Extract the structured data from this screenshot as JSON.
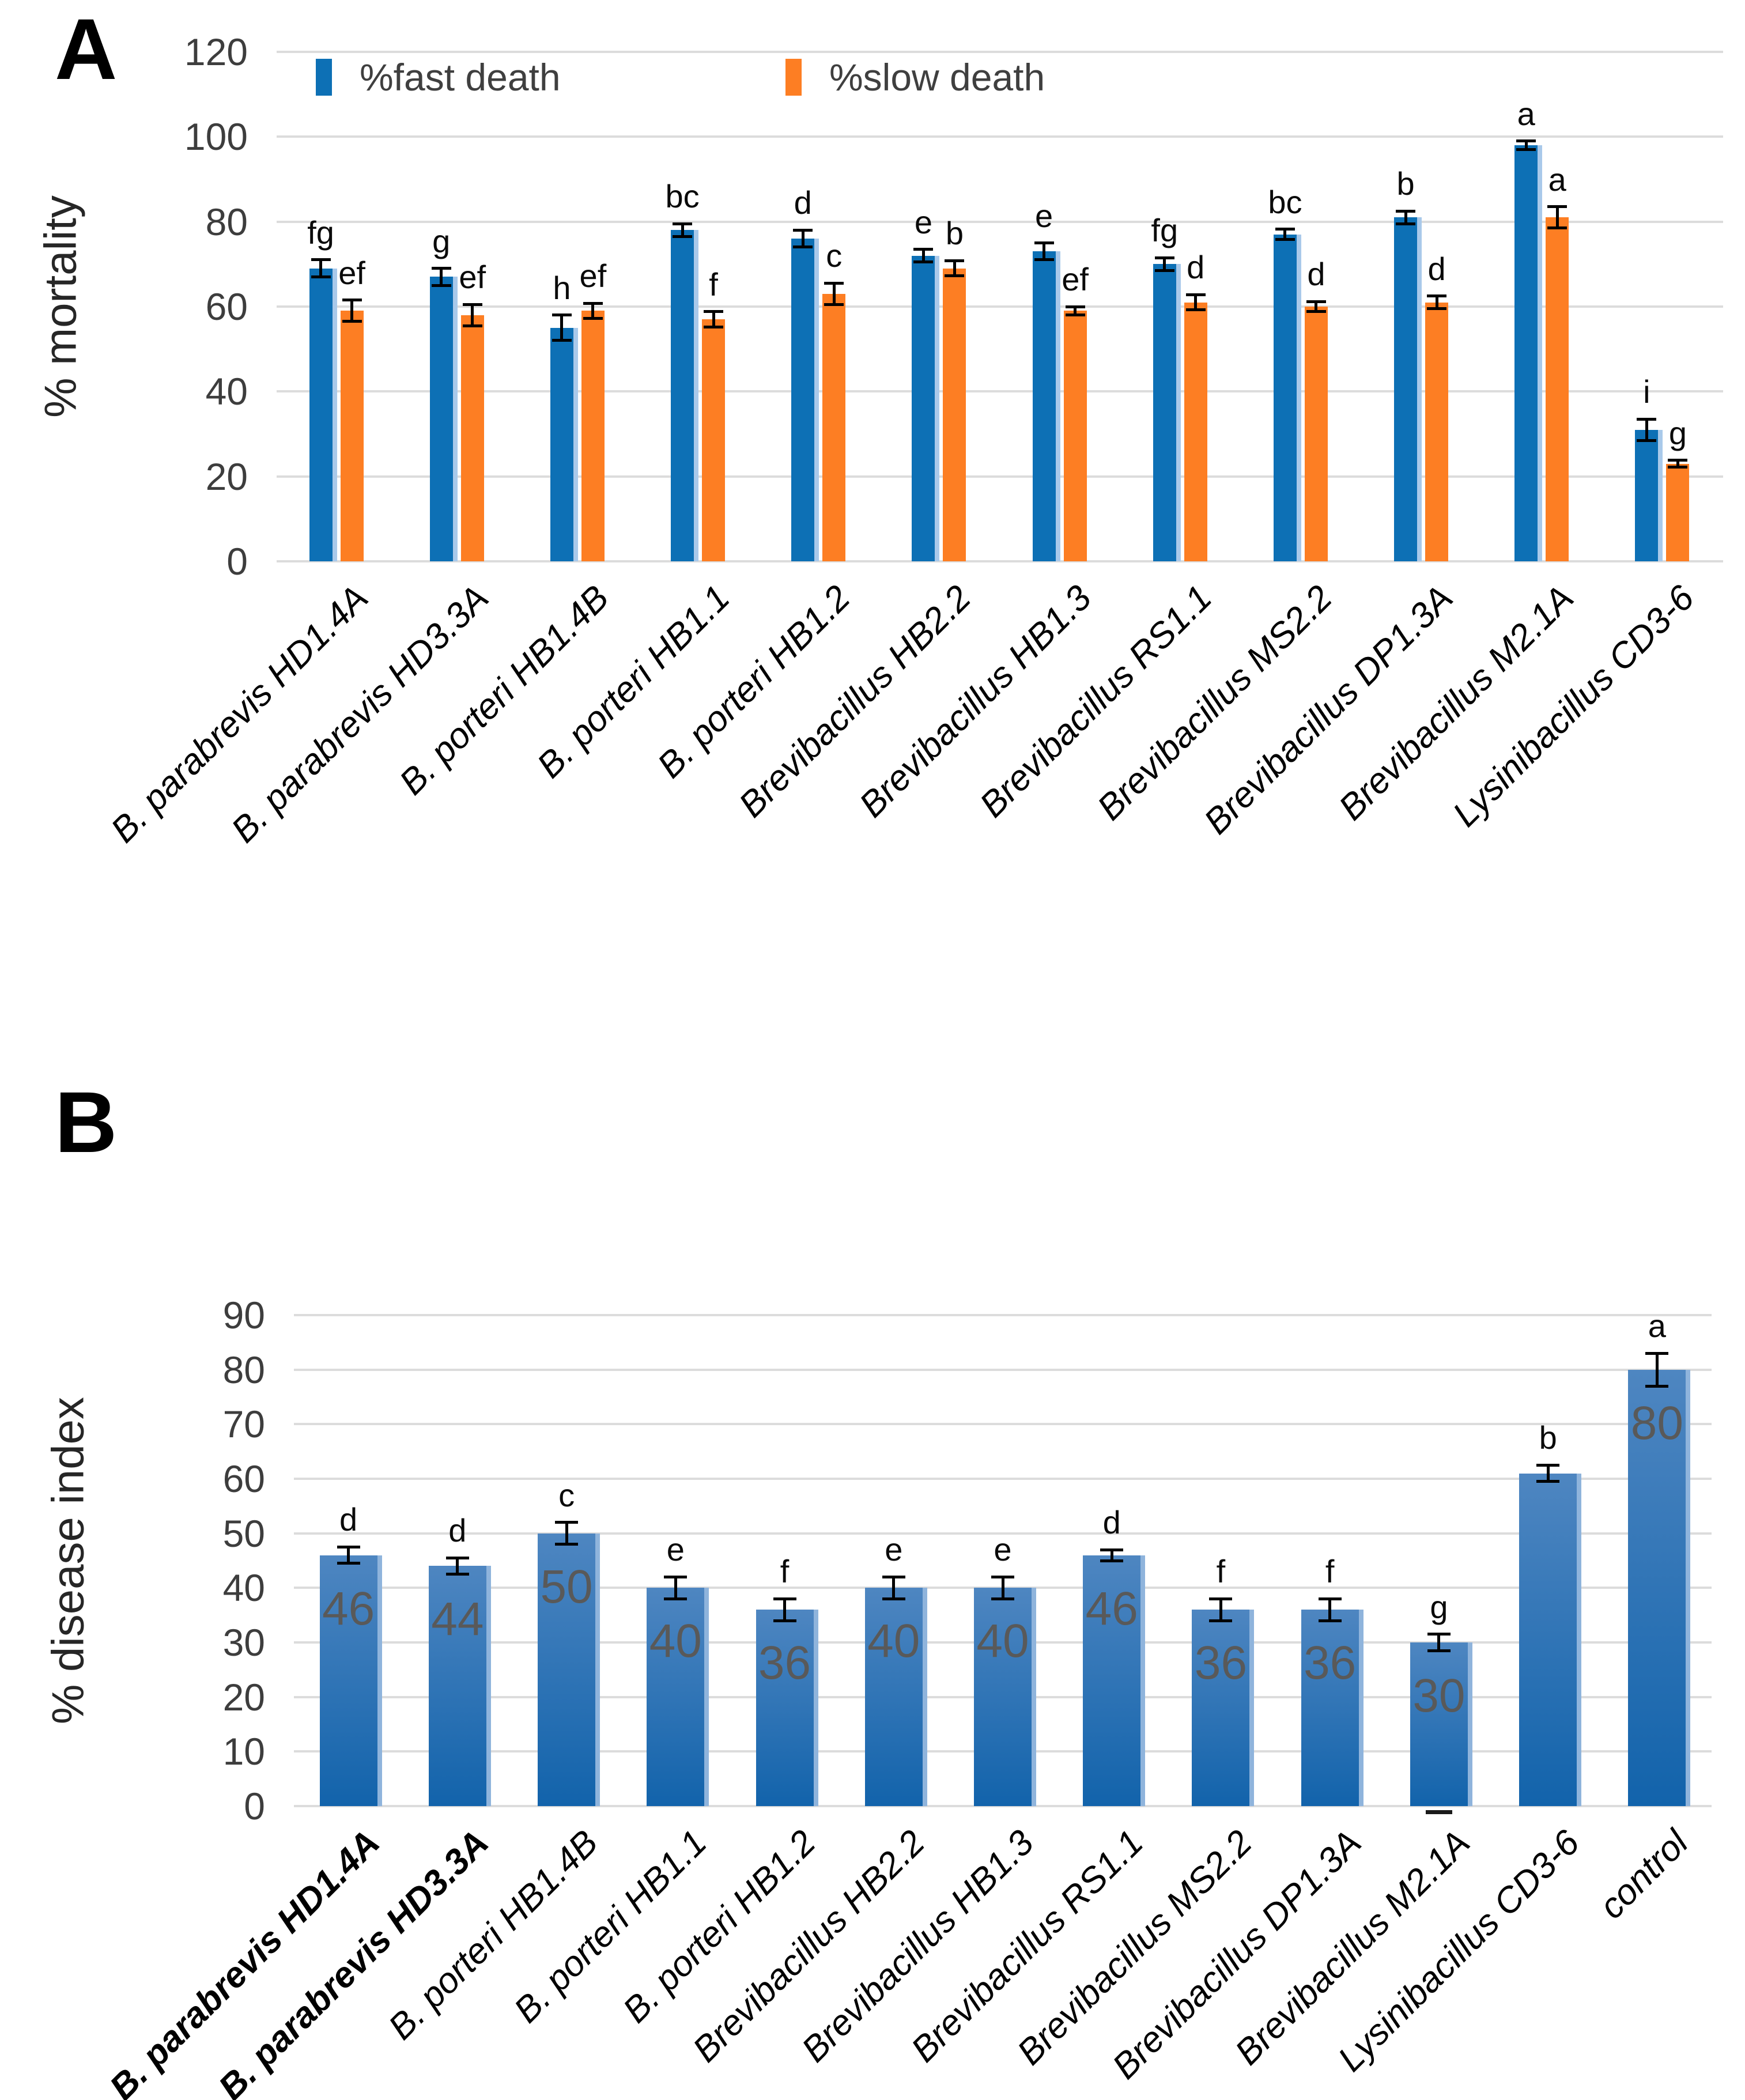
{
  "colors": {
    "fast_blue": "#0d70b5",
    "bar_edge_highlight": "#a9c9ea",
    "slow_orange": "#fd7e23",
    "gradient_top": "#4e86c1",
    "gradient_bottom": "#1263ab",
    "gridline": "#dcdcdc",
    "value_label_gray": "#595959",
    "error_bar": "#000000"
  },
  "chart_data": [
    {
      "type": "bar",
      "title": "A",
      "ylabel": "% mortality",
      "xlabel": "",
      "ylim": [
        0,
        120
      ],
      "yticks": [
        120,
        100,
        80,
        60,
        40,
        20,
        0
      ],
      "grid": true,
      "legend_position": "top",
      "categories": [
        "B. parabrevis HD1.4A",
        "B. parabrevis HD3.3A",
        "B. porteri HB1.4B",
        "B. porteri HB1.1",
        "B. porteri HB1.2",
        "Brevibacillus  HB2.2",
        "Brevibacillus HB1.3",
        "Brevibacillus RS1.1",
        "Brevibacillus MS2.2",
        "Brevibacillus DP1.3A",
        "Brevibacillus M2.1A",
        "Lysinibacillus CD3-6"
      ],
      "series": [
        {
          "name": "%fast death",
          "color": "#0d70b5",
          "values": [
            69,
            67,
            55,
            78,
            76,
            72,
            73,
            70,
            77,
            81,
            98,
            31
          ],
          "errors": [
            2,
            2,
            3,
            1.5,
            2,
            1.5,
            2,
            1.5,
            1.2,
            1.5,
            1,
            2.5
          ],
          "letters": [
            "fg",
            "g",
            "h",
            "bc",
            "d",
            "e",
            "e",
            "fg",
            "bc",
            "b",
            "a",
            "i"
          ]
        },
        {
          "name": "%slow death",
          "color": "#fd7e23",
          "values": [
            59,
            58,
            59,
            57,
            63,
            69,
            59,
            61,
            60,
            61,
            81,
            23
          ],
          "errors": [
            2.5,
            2.5,
            1.8,
            1.8,
            2.5,
            1.8,
            1,
            1.8,
            1.2,
            1.5,
            2.5,
            0.8
          ],
          "letters": [
            "ef",
            "ef",
            "ef",
            "f",
            "c",
            "b",
            "ef",
            "d",
            "d",
            "d",
            "a",
            "g"
          ]
        }
      ]
    },
    {
      "type": "bar",
      "title": "B",
      "ylabel": "% disease index",
      "xlabel": "",
      "ylim": [
        0,
        90
      ],
      "yticks": [
        90,
        80,
        70,
        60,
        50,
        40,
        30,
        20,
        10,
        0
      ],
      "grid": true,
      "legend_position": "none",
      "bold_category_indexes": [
        0,
        1
      ],
      "stray_mark_bar_index": 10,
      "categories": [
        "B. parabrevis HD1.4A",
        "B. parabrevis HD3.3A",
        "B. porteri HB1.4B",
        "B. porteri HB1.1",
        "B. porteri HB1.2",
        "Brevibacillus  HB2.2",
        "Brevibacillus HB1.3",
        "Brevibacillus RS1.1",
        "Brevibacillus MS2.2",
        "Brevibacillus DP1.3A",
        "Brevibacillus M2.1A",
        "Lysinibacillus CD3-6",
        "control"
      ],
      "series": [
        {
          "name": "% disease index",
          "color_top": "#4e86c1",
          "color_bottom": "#1263ab",
          "values": [
            46,
            44,
            50,
            40,
            36,
            40,
            40,
            46,
            36,
            36,
            30,
            61,
            80
          ],
          "errors": [
            1.5,
            1.5,
            2,
            2,
            2,
            2,
            2,
            1,
            2,
            2,
            1.5,
            1.5,
            3
          ],
          "letters": [
            "d",
            "d",
            "c",
            "e",
            "f",
            "e",
            "e",
            "d",
            "f",
            "f",
            "g",
            "b",
            "a"
          ],
          "data_labels": [
            "46",
            "44",
            "50",
            "40",
            "36",
            "40",
            "40",
            "46",
            "36",
            "36",
            "30",
            "",
            "80"
          ]
        }
      ]
    }
  ]
}
